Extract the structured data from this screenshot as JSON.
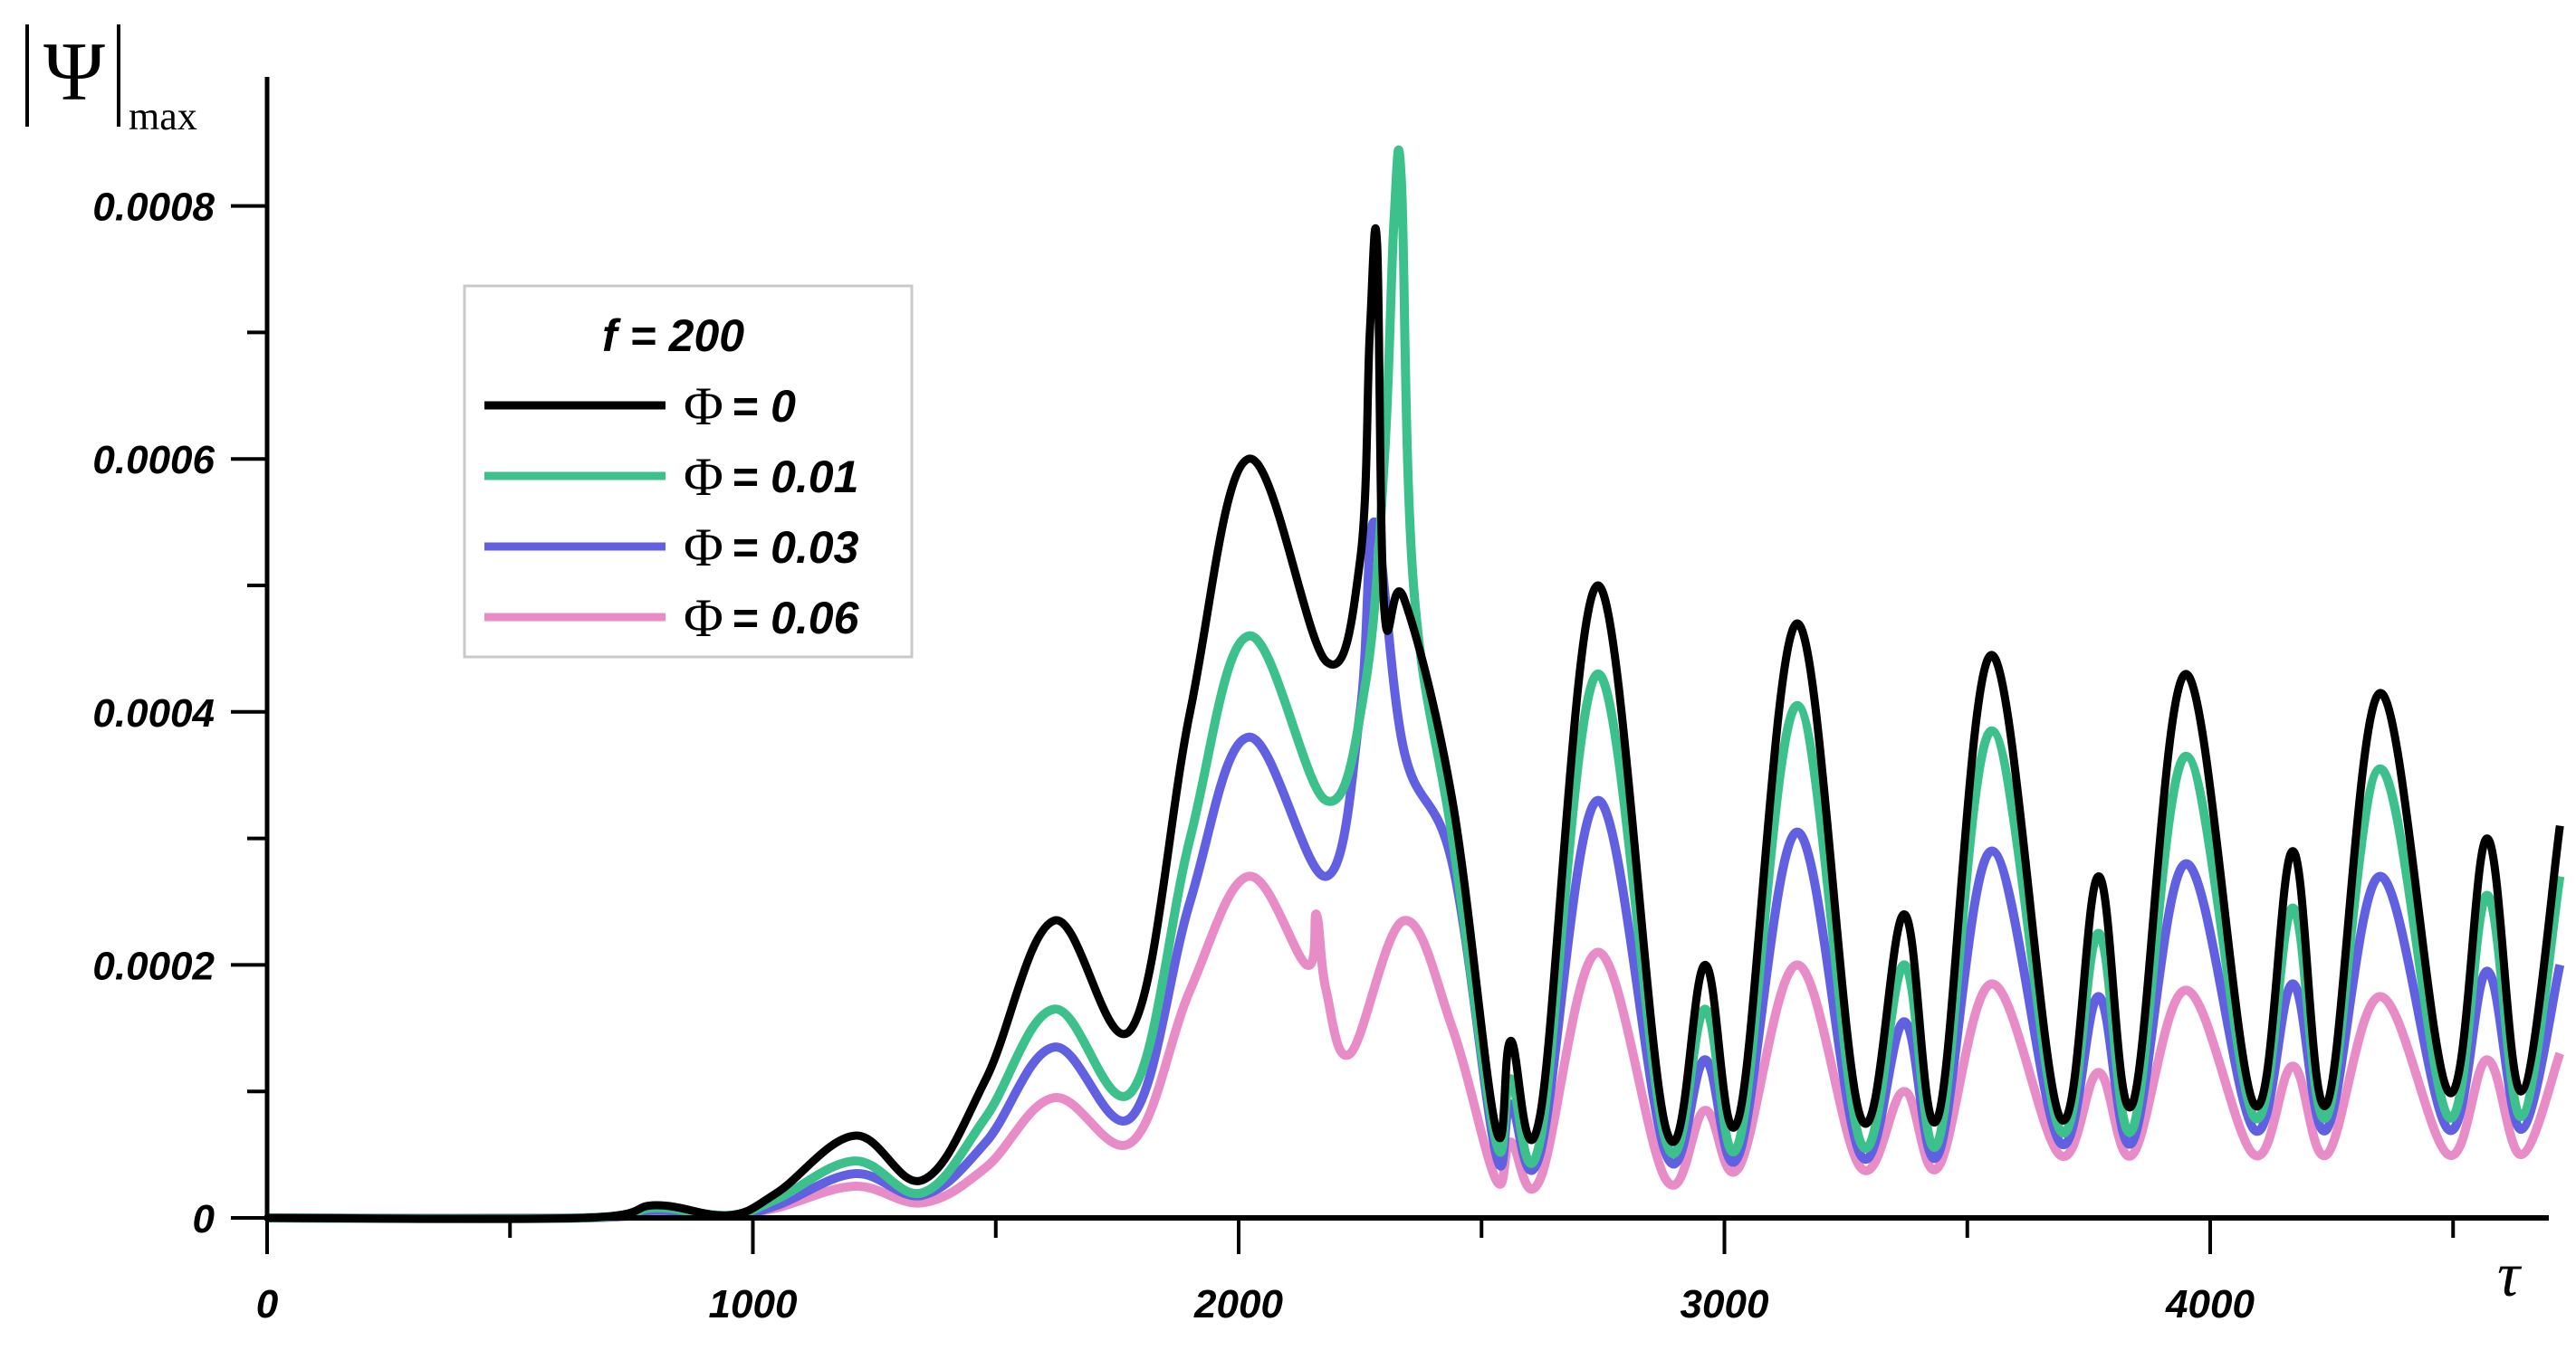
{
  "chart_data": {
    "type": "line",
    "title": "",
    "xlabel": "τ",
    "ylabel": "|Ψ|max",
    "ylabel_main": "Ψ",
    "ylabel_sub": "max",
    "xlim": [
      0,
      4725
    ],
    "ylim": [
      0,
      0.00088
    ],
    "grid": false,
    "legend_position": "upper-left (inside plot)",
    "legend_title": "f = 200",
    "x_ticks": [
      0,
      1000,
      2000,
      3000,
      4000
    ],
    "x_tick_labels": [
      "0",
      "1000",
      "2000",
      "3000",
      "4000"
    ],
    "x_minor_ticks": [
      500,
      1500,
      2500,
      3500,
      4500
    ],
    "y_ticks": [
      0,
      0.0002,
      0.0004,
      0.0006,
      0.0008
    ],
    "y_tick_labels": [
      "0",
      "0.0002",
      "0.0004",
      "0.0006",
      "0.0008"
    ],
    "y_minor_ticks": [
      0.0001,
      0.0003,
      0.0005,
      0.0007
    ],
    "series": [
      {
        "name": "Φ = 0",
        "phi": "0",
        "color": "#000000",
        "x": [
          0,
          650,
          800,
          950,
          1050,
          1210,
          1350,
          1480,
          1620,
          1780,
          1900,
          2020,
          2180,
          2250,
          2270,
          2285,
          2300,
          2340,
          2440,
          2530,
          2560,
          2620,
          2740,
          2880,
          2960,
          3030,
          3150,
          3280,
          3370,
          3440,
          3550,
          3690,
          3770,
          3840,
          3950,
          4090,
          4170,
          4240,
          4350,
          4490,
          4570,
          4640,
          4720
        ],
        "values": [
          0,
          0,
          1e-05,
          2e-06,
          2e-05,
          6.5e-05,
          3e-05,
          0.00011,
          0.000235,
          0.00015,
          0.0004,
          0.0006,
          0.00044,
          0.00052,
          0.0007,
          0.00077,
          0.00048,
          0.00049,
          0.00033,
          7e-05,
          0.00014,
          8e-05,
          0.0005,
          7e-05,
          0.0002,
          8e-05,
          0.00047,
          8e-05,
          0.00024,
          8e-05,
          0.000445,
          8e-05,
          0.00027,
          9e-05,
          0.00043,
          9e-05,
          0.00029,
          9e-05,
          0.000415,
          0.0001,
          0.0003,
          0.0001,
          0.00031
        ]
      },
      {
        "name": "Φ = 0.01",
        "phi": "0.01",
        "color": "#3cc08c",
        "x": [
          0,
          650,
          800,
          950,
          1050,
          1210,
          1350,
          1480,
          1620,
          1780,
          1900,
          2020,
          2180,
          2260,
          2300,
          2320,
          2335,
          2360,
          2440,
          2530,
          2560,
          2620,
          2740,
          2880,
          2960,
          3030,
          3150,
          3280,
          3370,
          3440,
          3550,
          3690,
          3770,
          3840,
          3950,
          4090,
          4170,
          4240,
          4350,
          4490,
          4570,
          4640,
          4720
        ],
        "values": [
          0,
          0,
          8e-06,
          2e-06,
          1.5e-05,
          4.5e-05,
          2e-05,
          8e-05,
          0.000165,
          0.0001,
          0.0003,
          0.00046,
          0.00033,
          0.00042,
          0.0006,
          0.00079,
          0.00082,
          0.0005,
          0.0003,
          6e-05,
          0.00011,
          6e-05,
          0.00043,
          6e-05,
          0.000165,
          6e-05,
          0.000405,
          6e-05,
          0.0002,
          6e-05,
          0.000385,
          7e-05,
          0.000225,
          7e-05,
          0.000365,
          8e-05,
          0.000245,
          8e-05,
          0.000355,
          8e-05,
          0.000255,
          8e-05,
          0.00027
        ]
      },
      {
        "name": "Φ = 0.03",
        "phi": "0.03",
        "color": "#6060e0",
        "x": [
          0,
          650,
          800,
          950,
          1050,
          1210,
          1350,
          1480,
          1620,
          1780,
          1900,
          2020,
          2180,
          2250,
          2280,
          2340,
          2440,
          2530,
          2560,
          2620,
          2740,
          2880,
          2960,
          3030,
          3150,
          3280,
          3370,
          3440,
          3550,
          3690,
          3770,
          3840,
          3950,
          4090,
          4170,
          4240,
          4350,
          4490,
          4570,
          4640,
          4720
        ],
        "values": [
          0,
          0,
          6e-06,
          2e-06,
          1e-05,
          3.5e-05,
          1.8e-05,
          6e-05,
          0.000135,
          8e-05,
          0.00025,
          0.00038,
          0.00027,
          0.0004,
          0.00055,
          0.00037,
          0.00028,
          5e-05,
          9e-05,
          5e-05,
          0.00033,
          5e-05,
          0.000125,
          5e-05,
          0.000305,
          5e-05,
          0.000155,
          5e-05,
          0.00029,
          6e-05,
          0.000175,
          6e-05,
          0.00028,
          7e-05,
          0.000185,
          7e-05,
          0.00027,
          7e-05,
          0.000195,
          7e-05,
          0.0002
        ]
      },
      {
        "name": "Φ = 0.06",
        "phi": "0.06",
        "color": "#e88cc8",
        "x": [
          0,
          650,
          800,
          950,
          1050,
          1210,
          1350,
          1480,
          1620,
          1780,
          1900,
          2020,
          2140,
          2160,
          2180,
          2230,
          2340,
          2440,
          2530,
          2560,
          2620,
          2740,
          2880,
          2960,
          3030,
          3150,
          3280,
          3370,
          3440,
          3550,
          3690,
          3770,
          3840,
          3950,
          4090,
          4170,
          4240,
          4350,
          4490,
          4570,
          4640,
          4720
        ],
        "values": [
          0,
          0,
          4e-06,
          2e-06,
          8e-06,
          2.5e-05,
          1.2e-05,
          4e-05,
          9.5e-05,
          6e-05,
          0.00018,
          0.00027,
          0.0002,
          0.00024,
          0.00018,
          0.00013,
          0.000235,
          0.00015,
          3e-05,
          6e-05,
          3e-05,
          0.00021,
          3e-05,
          8.5e-05,
          4e-05,
          0.0002,
          4e-05,
          0.0001,
          4e-05,
          0.000185,
          5e-05,
          0.000115,
          5e-05,
          0.00018,
          5e-05,
          0.00012,
          5e-05,
          0.000175,
          5e-05,
          0.000125,
          5e-05,
          0.00013
        ]
      }
    ]
  },
  "axes": {
    "y_title_main": "Ψ",
    "y_title_sub": "max",
    "x_title": "τ"
  },
  "legend": {
    "title": "f = 200",
    "items": [
      {
        "symbol": "Φ",
        "label": "= 0",
        "color": "#000000"
      },
      {
        "symbol": "Φ",
        "label": "= 0.01",
        "color": "#3cc08c"
      },
      {
        "symbol": "Φ",
        "label": "= 0.03",
        "color": "#6060e0"
      },
      {
        "symbol": "Φ",
        "label": "= 0.06",
        "color": "#e88cc8"
      }
    ]
  }
}
